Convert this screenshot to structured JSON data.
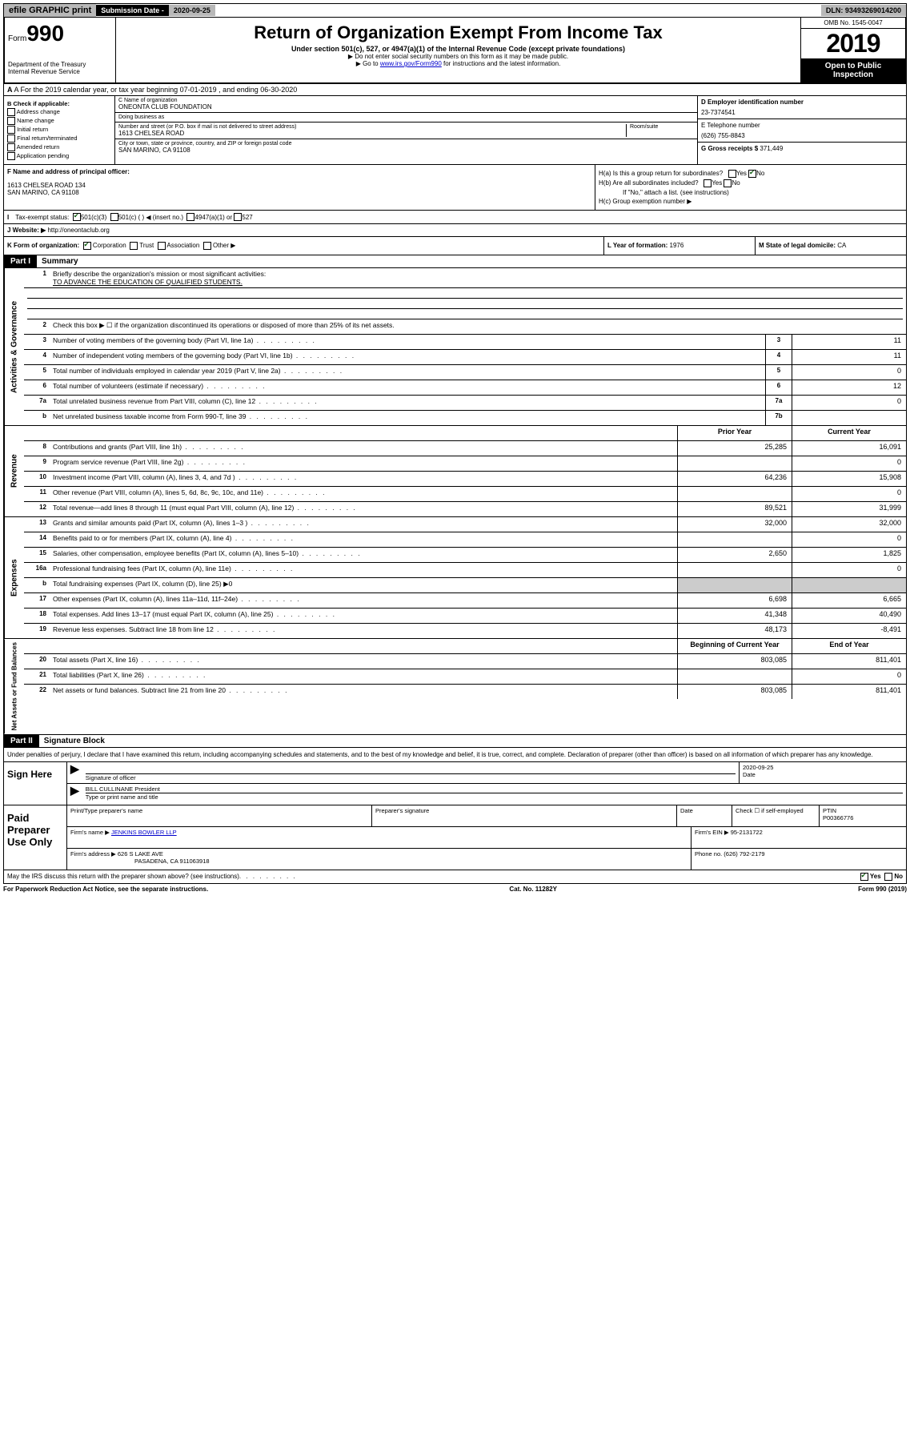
{
  "top": {
    "efile": "efile GRAPHIC print",
    "sub_label": "Submission Date - ",
    "sub_date": "2020-09-25",
    "dln": "DLN: 93493269014200"
  },
  "header": {
    "form_prefix": "Form",
    "form_num": "990",
    "dept1": "Department of the Treasury",
    "dept2": "Internal Revenue Service",
    "title": "Return of Organization Exempt From Income Tax",
    "sub": "Under section 501(c), 527, or 4947(a)(1) of the Internal Revenue Code (except private foundations)",
    "note1": "▶ Do not enter social security numbers on this form as it may be made public.",
    "note2_pre": "▶ Go to ",
    "note2_link": "www.irs.gov/Form990",
    "note2_post": " for instructions and the latest information.",
    "omb": "OMB No. 1545-0047",
    "year": "2019",
    "open": "Open to Public Inspection"
  },
  "rowA": "A For the 2019 calendar year, or tax year beginning 07-01-2019    , and ending 06-30-2020",
  "colB": {
    "title": "B Check if applicable:",
    "opts": [
      "Address change",
      "Name change",
      "Initial return",
      "Final return/terminated",
      "Amended return",
      "Application pending"
    ]
  },
  "colC": {
    "name_label": "C Name of organization",
    "name": "ONEONTA CLUB FOUNDATION",
    "dba_label": "Doing business as",
    "dba": "",
    "addr_label": "Number and street (or P.O. box if mail is not delivered to street address)",
    "room_label": "Room/suite",
    "addr": "1613 CHELSEA ROAD",
    "city_label": "City or town, state or province, country, and ZIP or foreign postal code",
    "city": "SAN MARINO, CA  91108"
  },
  "colD": {
    "ein_label": "D Employer identification number",
    "ein": "23-7374541",
    "tel_label": "E Telephone number",
    "tel": "(626) 755-8843",
    "gross_label": "G Gross receipts $",
    "gross": "371,449"
  },
  "colF": {
    "label": "F Name and address of principal officer:",
    "line1": "1613 CHELSEA ROAD 134",
    "line2": "SAN MARINO, CA  91108"
  },
  "colH": {
    "a": "H(a)  Is this a group return for subordinates?",
    "b": "H(b)  Are all subordinates included?",
    "bnote": "If \"No,\" attach a list. (see instructions)",
    "c": "H(c)  Group exemption number ▶"
  },
  "taxExempt": {
    "label": "Tax-exempt status:",
    "o1": "501(c)(3)",
    "o2": "501(c) (   ) ◀ (insert no.)",
    "o3": "4947(a)(1) or",
    "o4": "527"
  },
  "website": {
    "label": "J   Website: ▶",
    "url": "http://oneontaclub.org"
  },
  "rowK": {
    "k": "K Form of organization:",
    "corp": "Corporation",
    "trust": "Trust",
    "assoc": "Association",
    "other": "Other ▶",
    "l": "L Year of formation: ",
    "lval": "1976",
    "m": "M State of legal domicile: ",
    "mval": "CA"
  },
  "part1": {
    "header": "Part I",
    "title": "Summary"
  },
  "summary": {
    "q1": "Briefly describe the organization's mission or most significant activities:",
    "mission": "TO ADVANCE THE EDUCATION OF QUALIFIED STUDENTS.",
    "q2": "Check this box ▶ ☐  if the organization discontinued its operations or disposed of more than 25% of its net assets.",
    "rows": [
      {
        "n": "3",
        "d": "Number of voting members of the governing body (Part VI, line 1a)",
        "c": "3",
        "v": "11"
      },
      {
        "n": "4",
        "d": "Number of independent voting members of the governing body (Part VI, line 1b)",
        "c": "4",
        "v": "11"
      },
      {
        "n": "5",
        "d": "Total number of individuals employed in calendar year 2019 (Part V, line 2a)",
        "c": "5",
        "v": "0"
      },
      {
        "n": "6",
        "d": "Total number of volunteers (estimate if necessary)",
        "c": "6",
        "v": "12"
      },
      {
        "n": "7a",
        "d": "Total unrelated business revenue from Part VIII, column (C), line 12",
        "c": "7a",
        "v": "0"
      },
      {
        "n": "b",
        "d": "Net unrelated business taxable income from Form 990-T, line 39",
        "c": "7b",
        "v": ""
      }
    ],
    "colh1": "Prior Year",
    "colh2": "Current Year",
    "revenue": [
      {
        "n": "8",
        "d": "Contributions and grants (Part VIII, line 1h)",
        "p": "25,285",
        "c": "16,091"
      },
      {
        "n": "9",
        "d": "Program service revenue (Part VIII, line 2g)",
        "p": "",
        "c": "0"
      },
      {
        "n": "10",
        "d": "Investment income (Part VIII, column (A), lines 3, 4, and 7d )",
        "p": "64,236",
        "c": "15,908"
      },
      {
        "n": "11",
        "d": "Other revenue (Part VIII, column (A), lines 5, 6d, 8c, 9c, 10c, and 11e)",
        "p": "",
        "c": "0"
      },
      {
        "n": "12",
        "d": "Total revenue—add lines 8 through 11 (must equal Part VIII, column (A), line 12)",
        "p": "89,521",
        "c": "31,999"
      }
    ],
    "expenses": [
      {
        "n": "13",
        "d": "Grants and similar amounts paid (Part IX, column (A), lines 1–3 )",
        "p": "32,000",
        "c": "32,000"
      },
      {
        "n": "14",
        "d": "Benefits paid to or for members (Part IX, column (A), line 4)",
        "p": "",
        "c": "0"
      },
      {
        "n": "15",
        "d": "Salaries, other compensation, employee benefits (Part IX, column (A), lines 5–10)",
        "p": "2,650",
        "c": "1,825"
      },
      {
        "n": "16a",
        "d": "Professional fundraising fees (Part IX, column (A), line 11e)",
        "p": "",
        "c": "0"
      },
      {
        "n": "b",
        "d": "Total fundraising expenses (Part IX, column (D), line 25) ▶0",
        "p": null,
        "c": null
      },
      {
        "n": "17",
        "d": "Other expenses (Part IX, column (A), lines 11a–11d, 11f–24e)",
        "p": "6,698",
        "c": "6,665"
      },
      {
        "n": "18",
        "d": "Total expenses. Add lines 13–17 (must equal Part IX, column (A), line 25)",
        "p": "41,348",
        "c": "40,490"
      },
      {
        "n": "19",
        "d": "Revenue less expenses. Subtract line 18 from line 12",
        "p": "48,173",
        "c": "-8,491"
      }
    ],
    "colh3": "Beginning of Current Year",
    "colh4": "End of Year",
    "netassets": [
      {
        "n": "20",
        "d": "Total assets (Part X, line 16)",
        "p": "803,085",
        "c": "811,401"
      },
      {
        "n": "21",
        "d": "Total liabilities (Part X, line 26)",
        "p": "",
        "c": "0"
      },
      {
        "n": "22",
        "d": "Net assets or fund balances. Subtract line 21 from line 20",
        "p": "803,085",
        "c": "811,401"
      }
    ]
  },
  "sidelabels": {
    "a": "Activities & Governance",
    "b": "Revenue",
    "c": "Expenses",
    "d": "Net Assets or Fund Balances"
  },
  "part2": {
    "header": "Part II",
    "title": "Signature Block",
    "text": "Under penalties of perjury, I declare that I have examined this return, including accompanying schedules and statements, and to the best of my knowledge and belief, it is true, correct, and complete. Declaration of preparer (other than officer) is based on all information of which preparer has any knowledge."
  },
  "sign": {
    "here": "Sign Here",
    "sig_label": "Signature of officer",
    "date_label": "Date",
    "date": "2020-09-25",
    "name": "BILL CULLINANE President",
    "name_label": "Type or print name and title"
  },
  "paid": {
    "label": "Paid Preparer Use Only",
    "h1": "Print/Type preparer's name",
    "h2": "Preparer's signature",
    "h3": "Date",
    "h4_pre": "Check ☐ if self-employed",
    "h5": "PTIN",
    "ptin": "P00366776",
    "firm_label": "Firm's name    ▶",
    "firm": "JENKINS BOWLER LLP",
    "ein_label": "Firm's EIN ▶",
    "ein": "95-2131722",
    "addr_label": "Firm's address ▶",
    "addr1": "626 S LAKE AVE",
    "addr2": "PASADENA, CA  911063918",
    "phone_label": "Phone no.",
    "phone": "(626) 792-2179"
  },
  "bottom": {
    "q": "May the IRS discuss this return with the preparer shown above? (see instructions)",
    "yes": "Yes",
    "no": "No"
  },
  "footer": {
    "left": "For Paperwork Reduction Act Notice, see the separate instructions.",
    "mid": "Cat. No. 11282Y",
    "right": "Form 990 (2019)"
  }
}
